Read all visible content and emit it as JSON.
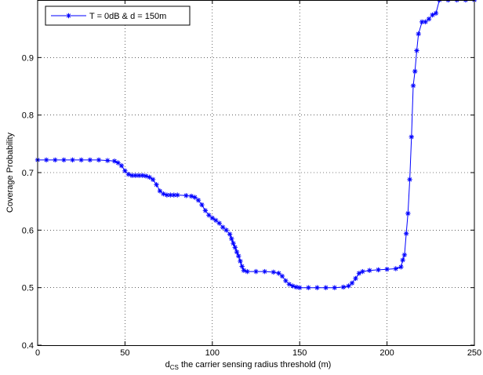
{
  "chart_data": {
    "type": "line",
    "title": "",
    "xlabel_sub": "CS",
    "xlabel_main": "d",
    "xlabel_rest": " the carrier sensing radius threshold (m)",
    "ylabel": "Coverage Probability",
    "xlim": [
      0,
      250
    ],
    "ylim": [
      0.4,
      1.0
    ],
    "xticks": [
      0,
      50,
      100,
      150,
      200,
      250
    ],
    "xtick_labels": [
      "0",
      "50",
      "100",
      "150",
      "200",
      "250"
    ],
    "yticks": [
      0.4,
      0.5,
      0.6,
      0.7,
      0.8,
      0.9
    ],
    "ytick_labels": [
      "0.4",
      "0.5",
      "0.6",
      "0.7",
      "0.8",
      "0.9"
    ],
    "grid": true,
    "legend_position": "top-left",
    "series": [
      {
        "name": "T = 0dB & d = 150m",
        "color": "#0000ff",
        "marker": "asterisk",
        "x": [
          0,
          5,
          10,
          15,
          20,
          25,
          30,
          35,
          40,
          44,
          46,
          48,
          50,
          52,
          54,
          56,
          58,
          60,
          62,
          64,
          66,
          68,
          70,
          72,
          74,
          76,
          78,
          80,
          85,
          88,
          90,
          92,
          94,
          96,
          98,
          100,
          102,
          104,
          106,
          108,
          110,
          111,
          112,
          113,
          114,
          115,
          116,
          117,
          118,
          120,
          125,
          130,
          135,
          138,
          140,
          142,
          144,
          146,
          148,
          150,
          155,
          160,
          165,
          170,
          175,
          178,
          180,
          182,
          184,
          186,
          190,
          195,
          200,
          205,
          208,
          209,
          210,
          211,
          212,
          213,
          214,
          215,
          216,
          217,
          218,
          220,
          222,
          224,
          226,
          228,
          230,
          235,
          240,
          245,
          250
        ],
        "y": [
          0.722,
          0.722,
          0.722,
          0.722,
          0.722,
          0.722,
          0.722,
          0.722,
          0.721,
          0.72,
          0.717,
          0.712,
          0.703,
          0.697,
          0.695,
          0.695,
          0.695,
          0.695,
          0.694,
          0.692,
          0.688,
          0.679,
          0.668,
          0.663,
          0.661,
          0.661,
          0.661,
          0.661,
          0.66,
          0.659,
          0.657,
          0.652,
          0.644,
          0.634,
          0.626,
          0.621,
          0.617,
          0.612,
          0.605,
          0.6,
          0.593,
          0.585,
          0.577,
          0.57,
          0.562,
          0.555,
          0.546,
          0.537,
          0.53,
          0.528,
          0.528,
          0.528,
          0.527,
          0.525,
          0.52,
          0.512,
          0.506,
          0.503,
          0.501,
          0.5,
          0.5,
          0.5,
          0.5,
          0.5,
          0.501,
          0.503,
          0.508,
          0.516,
          0.525,
          0.528,
          0.53,
          0.531,
          0.532,
          0.533,
          0.536,
          0.548,
          0.557,
          0.594,
          0.629,
          0.688,
          0.762,
          0.851,
          0.876,
          0.912,
          0.941,
          0.962,
          0.962,
          0.967,
          0.974,
          0.977,
          1.0,
          1.0,
          1.0,
          1.0,
          1.0
        ]
      }
    ]
  }
}
